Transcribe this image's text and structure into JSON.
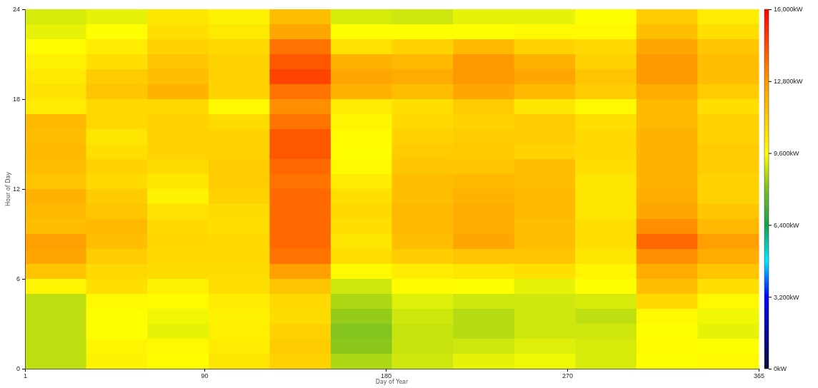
{
  "chart_data": {
    "type": "heatmap",
    "xlabel": "Day of Year",
    "ylabel": "Hour of Day",
    "xlim": [
      1,
      365
    ],
    "xticks": [
      1,
      90,
      180,
      270,
      365
    ],
    "ylim": [
      0,
      24
    ],
    "yticks": [
      0,
      6,
      12,
      18,
      24
    ],
    "clim": [
      0,
      16000
    ],
    "cticks": [
      {
        "value": 0,
        "label": "0kW"
      },
      {
        "value": 3200,
        "label": "3,200kW"
      },
      {
        "value": 6400,
        "label": "6,400kW"
      },
      {
        "value": 9600,
        "label": "9,600kW"
      },
      {
        "value": 12800,
        "label": "12,800kW"
      },
      {
        "value": 16000,
        "label": "16,000kW"
      }
    ],
    "cells": [
      [
        9100,
        9300,
        10400,
        10000,
        11600,
        9100,
        9000,
        9300,
        9300,
        9600,
        11200,
        10200
      ],
      [
        9300,
        9600,
        10600,
        10300,
        12400,
        9600,
        9600,
        9600,
        9800,
        9800,
        11600,
        10600
      ],
      [
        9700,
        10200,
        11000,
        10800,
        13600,
        10500,
        11000,
        11800,
        11000,
        10800,
        12400,
        11400
      ],
      [
        10000,
        10600,
        11400,
        11000,
        14200,
        12000,
        11800,
        12800,
        12000,
        11000,
        12800,
        11600
      ],
      [
        10300,
        11200,
        11600,
        11000,
        14600,
        12400,
        12200,
        12800,
        12400,
        11400,
        12800,
        11600
      ],
      [
        10500,
        11400,
        12000,
        11000,
        13600,
        12000,
        11600,
        12400,
        11800,
        11200,
        12200,
        11200
      ],
      [
        10200,
        10800,
        10800,
        9800,
        13000,
        10200,
        10600,
        11200,
        10400,
        9800,
        11800,
        10600
      ],
      [
        11800,
        10800,
        11000,
        10700,
        13600,
        9900,
        10800,
        11000,
        11200,
        10600,
        11800,
        11000
      ],
      [
        11600,
        10400,
        11000,
        11000,
        14200,
        9700,
        11000,
        11200,
        11200,
        10800,
        12000,
        11000
      ],
      [
        11800,
        10600,
        11000,
        11000,
        14200,
        9600,
        11200,
        11300,
        11000,
        10800,
        12000,
        11200
      ],
      [
        11600,
        11000,
        10700,
        11200,
        13800,
        9800,
        11400,
        11400,
        11600,
        10600,
        12000,
        11200
      ],
      [
        11400,
        10800,
        10400,
        11200,
        13600,
        10200,
        11600,
        11800,
        11600,
        10400,
        12000,
        11000
      ],
      [
        12000,
        11200,
        10000,
        11000,
        13800,
        10600,
        11600,
        12000,
        11800,
        10400,
        12200,
        11000
      ],
      [
        11800,
        11400,
        10500,
        10700,
        13800,
        10800,
        11800,
        12200,
        11800,
        10400,
        12400,
        11400
      ],
      [
        11600,
        11800,
        10800,
        10600,
        13800,
        10600,
        11800,
        12200,
        11600,
        10600,
        13000,
        11800
      ],
      [
        12600,
        11600,
        10900,
        10800,
        13800,
        10400,
        11600,
        12400,
        11600,
        10600,
        13800,
        12600
      ],
      [
        12400,
        11200,
        10800,
        10800,
        13600,
        10600,
        11200,
        11400,
        11400,
        10400,
        13000,
        12200
      ],
      [
        11400,
        10800,
        10700,
        10700,
        12600,
        9800,
        10200,
        10400,
        10600,
        9900,
        12200,
        11400
      ],
      [
        9900,
        10600,
        10000,
        10600,
        11400,
        9000,
        9700,
        9600,
        9300,
        9600,
        11600,
        10600
      ],
      [
        8800,
        9800,
        9700,
        10200,
        10800,
        8600,
        9200,
        9000,
        9000,
        9100,
        10800,
        9800
      ],
      [
        8800,
        9600,
        9400,
        10000,
        10700,
        8300,
        9000,
        8700,
        9000,
        8800,
        9800,
        9400
      ],
      [
        8800,
        9600,
        9300,
        10100,
        11000,
        8100,
        8900,
        8700,
        9000,
        9000,
        9600,
        9300
      ],
      [
        8800,
        9900,
        9800,
        10200,
        11200,
        8200,
        8900,
        9000,
        9200,
        9100,
        9700,
        9600
      ],
      [
        8800,
        10000,
        9700,
        10400,
        11000,
        8600,
        9000,
        9300,
        9400,
        9100,
        9600,
        9800
      ]
    ]
  }
}
